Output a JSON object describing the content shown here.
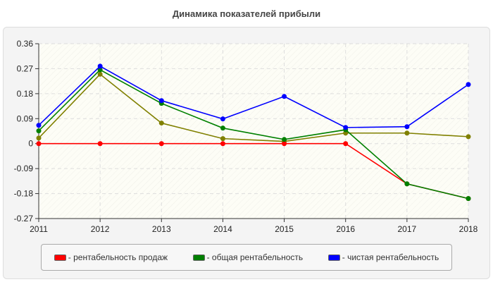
{
  "chart_data": {
    "type": "line",
    "title": "Динамика показателей прибыли",
    "xlabel": "",
    "ylabel": "",
    "x": [
      "2011",
      "2012",
      "2013",
      "2014",
      "2015",
      "2016",
      "2017",
      "2018"
    ],
    "yticks": [
      "0.36",
      "0.27",
      "0.18",
      "0.09",
      "0",
      "-0.09",
      "-0.18",
      "-0.27"
    ],
    "ylim": [
      -0.27,
      0.36
    ],
    "grid": true,
    "legend_position": "bottom",
    "series": [
      {
        "name": "- рентабельность продаж",
        "color": "#ff0000",
        "values": [
          0,
          0,
          0,
          0,
          0,
          0,
          -0.145,
          -0.198
        ]
      },
      {
        "name": "- общая рентабельность",
        "color": "#008000",
        "values": [
          0.046,
          0.266,
          0.145,
          0.056,
          0.015,
          0.05,
          -0.145,
          -0.198
        ]
      },
      {
        "name": "- чистая рентабельность",
        "color": "#0000ff",
        "values": [
          0.066,
          0.279,
          0.155,
          0.089,
          0.17,
          0.058,
          0.061,
          0.213
        ]
      },
      {
        "color": "#808000",
        "values": [
          0.02,
          0.25,
          0.074,
          0.018,
          0.008,
          0.038,
          0.038,
          0.025
        ]
      }
    ]
  }
}
